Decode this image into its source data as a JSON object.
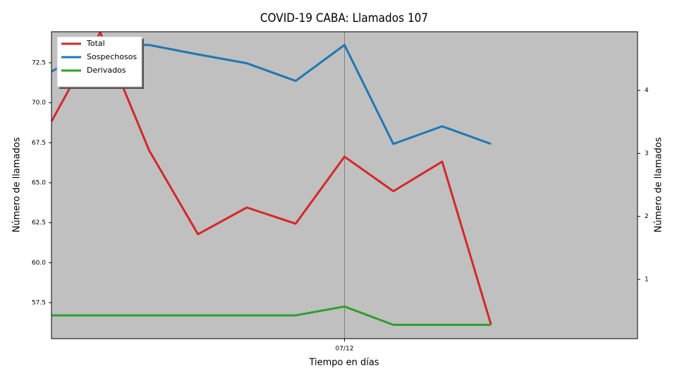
{
  "chart_data": {
    "type": "line",
    "title": "COVID-19 CABA: Llamados 107",
    "x_label": "Tiempo en días",
    "y_label": "Número de llamados",
    "y2_label": "Número de llamados",
    "categories": [
      null,
      null,
      null,
      null,
      null,
      null,
      "07/12",
      null,
      null,
      null
    ],
    "xlim": [
      0,
      12
    ],
    "ylim": [
      55.25,
      74.44
    ],
    "yticks": [
      57.5,
      {
        "value": 60.0,
        "label": "60.0"
      },
      62.5,
      {
        "value": 65.0,
        "label": "65.0"
      },
      67.5,
      {
        "value": 70.0,
        "label": "70.0"
      },
      72.5
    ],
    "y2lim": [
      0.06,
      4.93
    ],
    "y2ticks": [
      1,
      2,
      3,
      4
    ],
    "background": "#c0c0c0",
    "legend": "upper-left",
    "series": [
      {
        "name": "Total",
        "color": "#d62728",
        "values": [
          68.83,
          74.4,
          67.02,
          61.78,
          63.45,
          62.44,
          66.63,
          64.47,
          66.32,
          56.13
        ]
      },
      {
        "name": "Sospechosos",
        "color": "#1f77b4",
        "axis": "y2",
        "values": [
          4.3,
          4.72,
          4.72,
          4.57,
          4.43,
          4.15,
          4.72,
          3.15,
          3.43,
          3.15
        ]
      },
      {
        "name": "Derivados",
        "color": "#2ca02c",
        "axis": "y2",
        "values": [
          0.43,
          0.43,
          0.43,
          0.43,
          0.43,
          0.43,
          0.57,
          0.28,
          0.28,
          0.28
        ]
      }
    ]
  }
}
